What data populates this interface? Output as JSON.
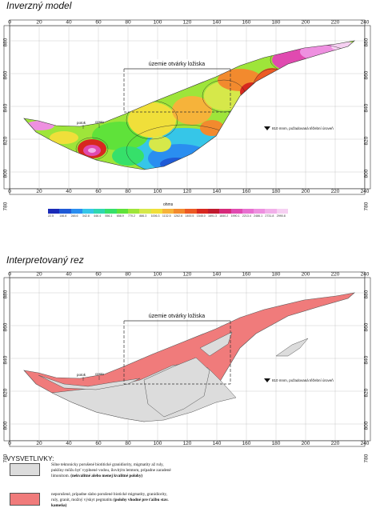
{
  "section1": {
    "title": "Inverzný model",
    "x_ticks": [
      "0",
      "20",
      "40",
      "60",
      "80",
      "100",
      "120",
      "140",
      "160",
      "180",
      "200",
      "220",
      "240"
    ],
    "y_ticks": [
      "880",
      "860",
      "840",
      "820",
      "800",
      "780"
    ],
    "area_label": "územie otvárky ložiska",
    "path_label": "potok",
    "road_label": "cesta",
    "note_label": "810 mnm, požadovaná těžební úroveň",
    "colorbar_title": "ohms",
    "colorbar_labels": [
      "22.5",
      "146.8",
      "248.6",
      "342.8",
      "446.4",
      "556.1",
      "658.9",
      "770.2",
      "886.3",
      "1006.3",
      "1132.5",
      "1262.6",
      "1400.5",
      "1545.0",
      "1691.3",
      "1840.2",
      "1990.1",
      "2213.4",
      "2486.1",
      "2731.8",
      "2990.8"
    ],
    "colorbar_colors": [
      "#1a2bb8",
      "#1f5ad6",
      "#2a8ef0",
      "#36c6e8",
      "#2fd7b0",
      "#36e06a",
      "#5fe23a",
      "#9ee53a",
      "#d6e84a",
      "#f0df3a",
      "#f6b33a",
      "#f28a2e",
      "#ec5a24",
      "#d7281f",
      "#c01a2e",
      "#d62a7a",
      "#e04ab0",
      "#e870d0",
      "#ee90e0",
      "#f2b0ea",
      "#f6d0f2"
    ]
  },
  "section2": {
    "title": "Interpretovaný rez",
    "x_ticks": [
      "0",
      "20",
      "40",
      "60",
      "80",
      "100",
      "120",
      "140",
      "160",
      "180",
      "200",
      "220",
      "240"
    ],
    "y_ticks": [
      "880",
      "860",
      "840",
      "820",
      "800",
      "780"
    ],
    "area_label": "územie otvárky ložiska",
    "path_label": "potok",
    "road_label": "cesta",
    "note_label": "810 mnm, požadovaná těžební úroveň"
  },
  "legend": {
    "title": "VYSVETLIVKY:",
    "items": [
      {
        "color": "#dcdcdc",
        "text": "Silne tektonicky porušené biotitické granidiority, migmatity až ruly, puklíny môžu byť vyplnené vodou, ílovitým lemtom, prípadne zaradené limonitom.",
        "bold": "(nekvalitné alebo menej kvalitné polohy)"
      },
      {
        "color": "#f07b7b",
        "text": "neporušené, prípadne slabo porušené biotické migmatity, granidiority, ruly, granit, možný výskyt pegmatitu",
        "bold": "(polohy vhodné pre ťažbu stav. kameňa)"
      }
    ]
  }
}
